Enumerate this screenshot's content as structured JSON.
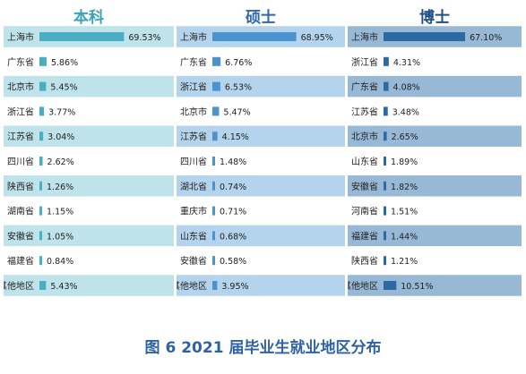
{
  "caption": "图 6 2021 届毕业生就业地区分布",
  "chart_data": [
    {
      "type": "bar",
      "orientation": "horizontal",
      "title": "本科",
      "categories": [
        "上海市",
        "广东省",
        "北京市",
        "浙江省",
        "江苏省",
        "四川省",
        "陕西省",
        "湖南省",
        "安徽省",
        "福建省",
        "其他地区"
      ],
      "values": [
        69.53,
        5.86,
        5.45,
        3.77,
        3.04,
        2.62,
        1.26,
        1.15,
        1.05,
        0.84,
        5.43
      ],
      "value_labels": [
        "69.53%",
        "5.86%",
        "5.45%",
        "3.77%",
        "3.04%",
        "2.62%",
        "1.26%",
        "1.15%",
        "1.05%",
        "0.84%",
        "5.43%"
      ],
      "colors": {
        "title": "#3aa3b8",
        "bar": "#49aec1",
        "band": "#bfe3ea"
      }
    },
    {
      "type": "bar",
      "orientation": "horizontal",
      "title": "硕士",
      "categories": [
        "上海市",
        "广东省",
        "浙江省",
        "北京市",
        "江苏省",
        "四川省",
        "湖北省",
        "重庆市",
        "山东省",
        "安徽省",
        "其他地区"
      ],
      "values": [
        68.95,
        6.76,
        6.53,
        5.47,
        4.15,
        1.48,
        0.74,
        0.71,
        0.68,
        0.58,
        3.95
      ],
      "value_labels": [
        "68.95%",
        "6.76%",
        "6.53%",
        "5.47%",
        "4.15%",
        "1.48%",
        "0.74%",
        "0.71%",
        "0.68%",
        "0.58%",
        "3.95%"
      ],
      "colors": {
        "title": "#2f6aa8",
        "bar": "#4a93cf",
        "band": "#b3d4ec"
      }
    },
    {
      "type": "bar",
      "orientation": "horizontal",
      "title": "博士",
      "categories": [
        "上海市",
        "浙江省",
        "广东省",
        "江苏省",
        "北京市",
        "山东省",
        "安徽省",
        "河南省",
        "福建省",
        "陕西省",
        "其他地区"
      ],
      "values": [
        67.1,
        4.31,
        4.08,
        3.48,
        2.65,
        1.89,
        1.82,
        1.51,
        1.44,
        1.21,
        10.51
      ],
      "value_labels": [
        "67.10%",
        "4.31%",
        "4.08%",
        "3.48%",
        "2.65%",
        "1.89%",
        "1.82%",
        "1.51%",
        "1.44%",
        "1.21%",
        "10.51%"
      ],
      "colors": {
        "title": "#1f4f86",
        "bar": "#2c6aa3",
        "band": "#97b9d6"
      }
    }
  ]
}
